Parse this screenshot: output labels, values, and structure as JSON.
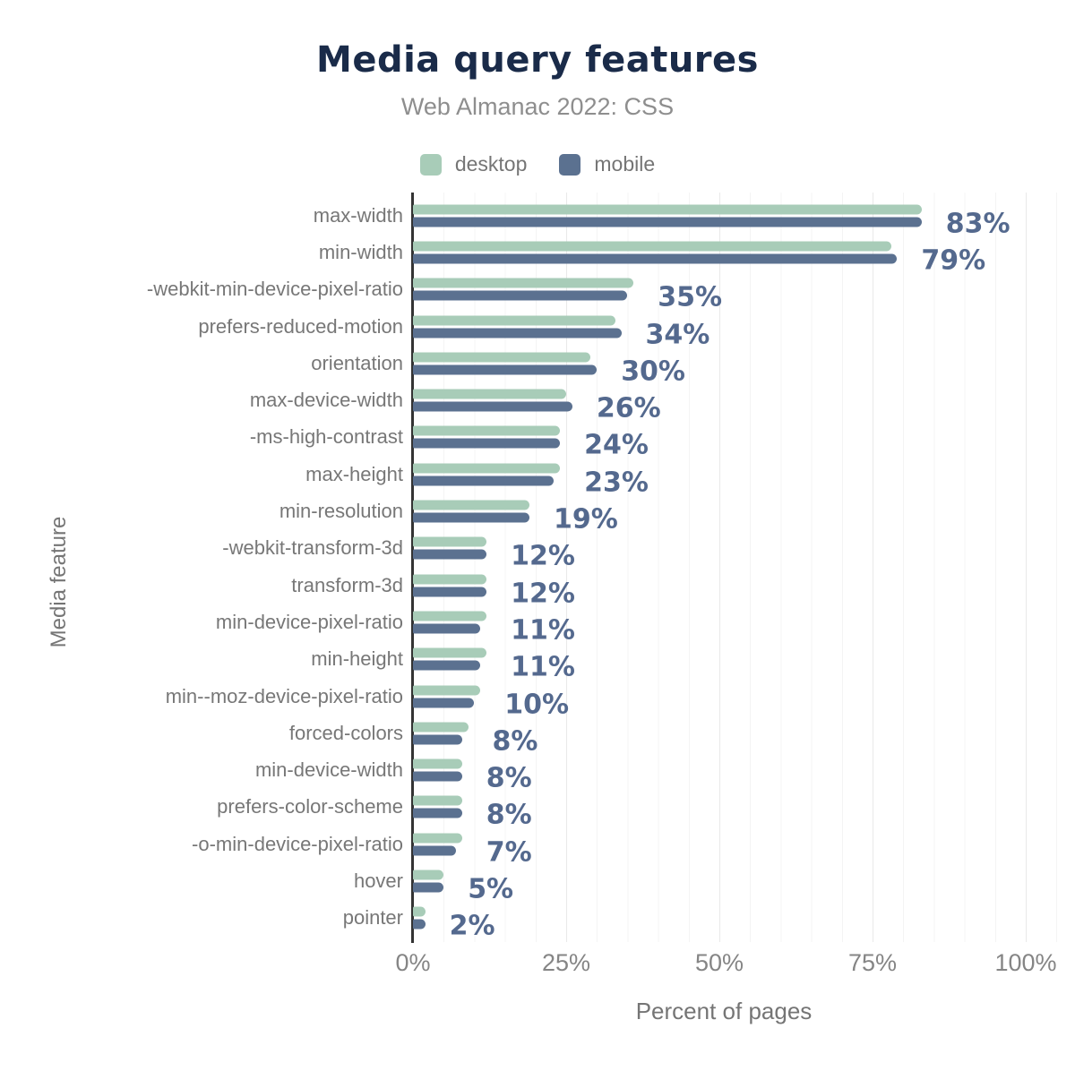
{
  "title": "Media query features",
  "subtitle": "Web Almanac 2022: CSS",
  "legend": {
    "items": [
      {
        "label": "desktop",
        "color": "#a8ccb8"
      },
      {
        "label": "mobile",
        "color": "#5b7190"
      }
    ]
  },
  "axes": {
    "x_title": "Percent of pages",
    "y_title": "Media feature",
    "x_ticks": [
      {
        "label": "0%",
        "value": 0
      },
      {
        "label": "25%",
        "value": 25
      },
      {
        "label": "50%",
        "value": 50
      },
      {
        "label": "75%",
        "value": 75
      },
      {
        "label": "100%",
        "value": 100
      }
    ]
  },
  "colors": {
    "title_text": "#1a2b49",
    "subtitle_text": "#8e8e8e",
    "category_text": "#777777",
    "tick_text": "#858585",
    "axis_title_text": "#757575",
    "value_label_text": "#54698e",
    "desktop_bar": "#a8ccb8",
    "mobile_bar": "#5b7190",
    "axis_line": "#333333",
    "grid_minor": "#f4f4f4",
    "grid_major": "#e9e9e9",
    "background": "#ffffff"
  },
  "chart_data": {
    "type": "bar",
    "orientation": "horizontal",
    "title": "Media query features",
    "subtitle": "Web Almanac 2022: CSS",
    "xlabel": "Percent of pages",
    "ylabel": "Media feature",
    "xlim": [
      0,
      100
    ],
    "x_tick_labels": [
      "0%",
      "25%",
      "50%",
      "75%",
      "100%"
    ],
    "grid": "vertical, minor every 5%, major every 25%",
    "legend_position": "top center",
    "categories": [
      "max-width",
      "min-width",
      "-webkit-min-device-pixel-ratio",
      "prefers-reduced-motion",
      "orientation",
      "max-device-width",
      "-ms-high-contrast",
      "max-height",
      "min-resolution",
      "-webkit-transform-3d",
      "transform-3d",
      "min-device-pixel-ratio",
      "min-height",
      "min--moz-device-pixel-ratio",
      "forced-colors",
      "min-device-width",
      "prefers-color-scheme",
      "-o-min-device-pixel-ratio",
      "hover",
      "pointer"
    ],
    "series": [
      {
        "name": "desktop",
        "color": "#a8ccb8",
        "values": [
          83,
          78,
          36,
          33,
          29,
          25,
          24,
          24,
          19,
          12,
          12,
          12,
          12,
          11,
          9,
          8,
          8,
          8,
          5,
          2
        ]
      },
      {
        "name": "mobile",
        "color": "#5b7190",
        "values": [
          83,
          79,
          35,
          34,
          30,
          26,
          24,
          23,
          19,
          12,
          12,
          11,
          11,
          10,
          8,
          8,
          8,
          7,
          5,
          2
        ]
      }
    ],
    "value_labels": [
      "83%",
      "79%",
      "35%",
      "34%",
      "30%",
      "26%",
      "24%",
      "23%",
      "19%",
      "12%",
      "12%",
      "11%",
      "11%",
      "10%",
      "8%",
      "8%",
      "8%",
      "7%",
      "5%",
      "2%"
    ]
  }
}
